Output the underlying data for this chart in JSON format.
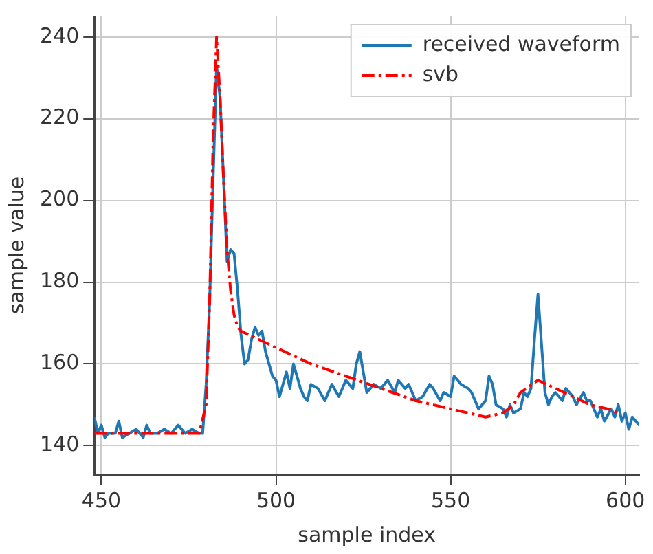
{
  "chart_data": {
    "type": "line",
    "xlabel": "sample index",
    "ylabel": "sample value",
    "xlim": [
      448,
      604
    ],
    "ylim": [
      133,
      245
    ],
    "xticks": [
      450,
      500,
      550,
      600
    ],
    "yticks": [
      140,
      160,
      180,
      200,
      220,
      240
    ],
    "grid": true,
    "legend": "top right",
    "marker": "none",
    "series": [
      {
        "name": "received waveform",
        "color": "#1f77b4",
        "line_style": "solid",
        "x": [
          448,
          449,
          450,
          451,
          452,
          454,
          455,
          456,
          458,
          460,
          462,
          463,
          464,
          466,
          468,
          470,
          472,
          474,
          476,
          478,
          479,
          480,
          481,
          482,
          483,
          484,
          485,
          486,
          487,
          488,
          489,
          490,
          491,
          492,
          493,
          494,
          495,
          496,
          497,
          498,
          499,
          500,
          501,
          502,
          503,
          504,
          505,
          506,
          507,
          508,
          509,
          510,
          512,
          514,
          515,
          516,
          518,
          520,
          522,
          523,
          524,
          525,
          526,
          527,
          528,
          530,
          532,
          534,
          535,
          537,
          538,
          540,
          542,
          544,
          545,
          547,
          548,
          550,
          551,
          552,
          553,
          555,
          556,
          558,
          560,
          561,
          562,
          563,
          565,
          566,
          567,
          568,
          570,
          571,
          572,
          573,
          574,
          575,
          576,
          577,
          578,
          579,
          580,
          582,
          583,
          585,
          586,
          588,
          589,
          590,
          592,
          593,
          594,
          596,
          597,
          598,
          599,
          600,
          601,
          602,
          603,
          604
        ],
        "values": [
          147,
          143,
          145,
          142,
          143,
          143,
          146,
          142,
          143,
          144,
          142,
          145,
          143,
          143,
          144,
          143,
          145,
          143,
          144,
          143,
          143,
          155,
          175,
          205,
          233,
          225,
          205,
          185,
          188,
          187,
          178,
          167,
          160,
          161,
          166,
          169,
          167,
          168,
          163,
          160,
          157,
          156,
          152,
          155,
          158,
          154,
          160,
          157,
          154,
          152,
          151,
          155,
          154,
          151,
          153,
          155,
          152,
          156,
          154,
          160,
          163,
          158,
          153,
          154,
          155,
          154,
          156,
          153,
          156,
          154,
          155,
          151,
          152,
          155,
          154,
          151,
          153,
          152,
          157,
          156,
          155,
          154,
          153,
          149,
          151,
          157,
          155,
          150,
          149,
          147,
          150,
          148,
          149,
          153,
          152,
          154,
          166,
          177,
          165,
          153,
          150,
          152,
          153,
          151,
          154,
          152,
          150,
          153,
          151,
          151,
          147,
          149,
          146,
          149,
          147,
          150,
          146,
          148,
          144,
          147,
          146,
          145
        ]
      },
      {
        "name": "svb",
        "color": "#ff0000",
        "line_style": "dashed",
        "x": [
          448,
          460,
          470,
          478,
          480,
          481,
          482,
          483,
          484,
          485,
          486,
          487,
          488,
          489,
          490,
          495,
          500,
          505,
          510,
          520,
          530,
          540,
          550,
          560,
          565,
          568,
          570,
          575,
          580,
          585,
          590,
          595,
          598
        ],
        "values": [
          143,
          143,
          143,
          143,
          150,
          175,
          215,
          240,
          225,
          205,
          188,
          178,
          172,
          169,
          168,
          166,
          164,
          162,
          160,
          157,
          154,
          151,
          149,
          147,
          148,
          150,
          153,
          156,
          154,
          152,
          150,
          149,
          148
        ]
      }
    ]
  }
}
